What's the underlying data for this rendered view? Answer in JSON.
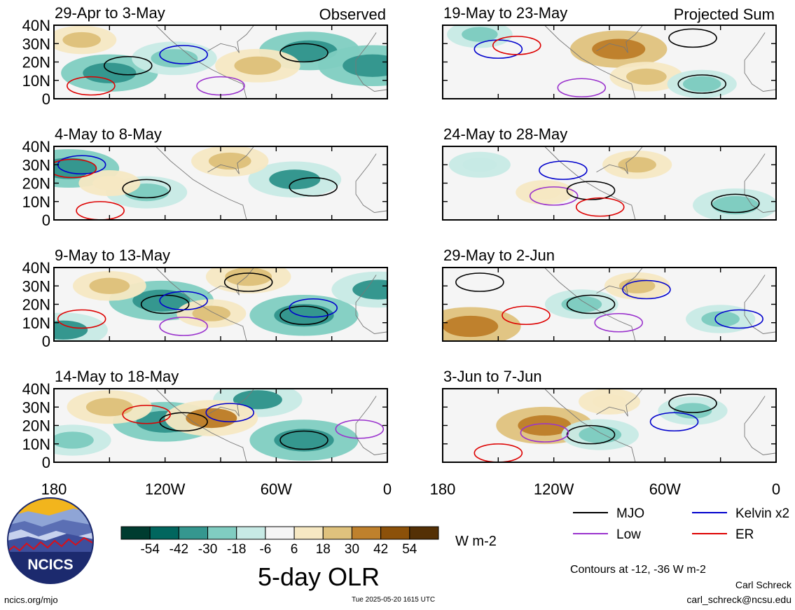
{
  "figure_title": "5-day OLR",
  "units": "W m-2",
  "contour_note": "Contours at -12, -36 W m-2",
  "colorbar_ticks": [
    "-54",
    "-42",
    "-30",
    "-18",
    "-6",
    "6",
    "18",
    "30",
    "42",
    "54"
  ],
  "colorbar_colors": [
    "#003c30",
    "#01665e",
    "#35978f",
    "#80cdc1",
    "#c7eae5",
    "#f5f5f5",
    "#f6e8c3",
    "#dfc27d",
    "#bf812d",
    "#8c510a",
    "#543005"
  ],
  "lon_ticks": [
    "180",
    "120W",
    "60W",
    "0"
  ],
  "lat_ticks": [
    "40N",
    "30N",
    "20N",
    "10N",
    "0"
  ],
  "column_labels": {
    "left": "Observed",
    "right": "Projected Sum"
  },
  "legend": [
    {
      "label": "MJO",
      "color": "#000000"
    },
    {
      "label": "Kelvin x2",
      "color": "#0000cc"
    },
    {
      "label": "Low",
      "color": "#9a32cd"
    },
    {
      "label": "ER",
      "color": "#dd0000"
    }
  ],
  "footer": {
    "site": "ncics.org/mjo",
    "timestamp": "Tue 2025-05-20 1615 UTC",
    "author": "Carl Schreck",
    "email": "carl_schreck@ncsu.edu"
  },
  "logo_text": "NCICS",
  "chart_data": [
    {
      "type": "heatmap",
      "title": "29-Apr to 3-May",
      "column": "Observed",
      "xlim": [
        "180",
        "0"
      ],
      "ylim": [
        0,
        40
      ],
      "features": [
        {
          "kind": "anomaly",
          "sign": "negative",
          "lon": -150,
          "lat": 14,
          "magnitude": 28
        },
        {
          "kind": "anomaly",
          "sign": "negative",
          "lon": -115,
          "lat": 22,
          "magnitude": 22
        },
        {
          "kind": "anomaly",
          "sign": "negative",
          "lon": -42,
          "lat": 26,
          "magnitude": 30
        },
        {
          "kind": "anomaly",
          "sign": "negative",
          "lon": -8,
          "lat": 18,
          "magnitude": 34
        },
        {
          "kind": "anomaly",
          "sign": "positive",
          "lon": -70,
          "lat": 18,
          "magnitude": 22
        },
        {
          "kind": "anomaly",
          "sign": "positive",
          "lon": -165,
          "lat": 32,
          "magnitude": 14
        },
        {
          "kind": "contour",
          "type": "MJO",
          "lon": -140,
          "lat": 18
        },
        {
          "kind": "contour",
          "type": "MJO",
          "lon": -45,
          "lat": 25
        },
        {
          "kind": "contour",
          "type": "Kelvin x2",
          "lon": -110,
          "lat": 24
        },
        {
          "kind": "contour",
          "type": "Low",
          "lon": -90,
          "lat": 7
        },
        {
          "kind": "contour",
          "type": "ER",
          "lon": -160,
          "lat": 7
        }
      ]
    },
    {
      "type": "heatmap",
      "title": "19-May to 23-May",
      "column": "Projected Sum",
      "xlim": [
        "180",
        "0"
      ],
      "ylim": [
        0,
        40
      ],
      "features": [
        {
          "kind": "anomaly",
          "sign": "positive",
          "lon": -85,
          "lat": 27,
          "magnitude": 28
        },
        {
          "kind": "anomaly",
          "sign": "positive",
          "lon": -70,
          "lat": 12,
          "magnitude": 16
        },
        {
          "kind": "anomaly",
          "sign": "negative",
          "lon": -160,
          "lat": 35,
          "magnitude": 12
        },
        {
          "kind": "anomaly",
          "sign": "negative",
          "lon": -40,
          "lat": 8,
          "magnitude": 14
        },
        {
          "kind": "contour",
          "type": "Kelvin x2",
          "lon": -150,
          "lat": 27
        },
        {
          "kind": "contour",
          "type": "ER",
          "lon": -140,
          "lat": 29
        },
        {
          "kind": "contour",
          "type": "MJO",
          "lon": -40,
          "lat": 8
        },
        {
          "kind": "contour",
          "type": "MJO",
          "lon": -45,
          "lat": 33
        },
        {
          "kind": "contour",
          "type": "Low",
          "lon": -105,
          "lat": 6
        }
      ]
    },
    {
      "type": "heatmap",
      "title": "4-May to 8-May",
      "column": "Observed",
      "xlim": [
        "180",
        "0"
      ],
      "ylim": [
        0,
        40
      ],
      "features": [
        {
          "kind": "anomaly",
          "sign": "negative",
          "lon": -172,
          "lat": 28,
          "magnitude": 30
        },
        {
          "kind": "anomaly",
          "sign": "negative",
          "lon": -130,
          "lat": 15,
          "magnitude": 20
        },
        {
          "kind": "anomaly",
          "sign": "negative",
          "lon": -50,
          "lat": 22,
          "magnitude": 26
        },
        {
          "kind": "anomaly",
          "sign": "positive",
          "lon": -85,
          "lat": 32,
          "magnitude": 18
        },
        {
          "kind": "anomaly",
          "sign": "positive",
          "lon": -150,
          "lat": 20,
          "magnitude": 10
        },
        {
          "kind": "contour",
          "type": "MJO",
          "lon": -130,
          "lat": 17
        },
        {
          "kind": "contour",
          "type": "MJO",
          "lon": -40,
          "lat": 18
        },
        {
          "kind": "contour",
          "type": "Kelvin x2",
          "lon": -165,
          "lat": 30
        },
        {
          "kind": "contour",
          "type": "ER",
          "lon": -170,
          "lat": 28
        },
        {
          "kind": "contour",
          "type": "ER",
          "lon": -155,
          "lat": 5
        }
      ]
    },
    {
      "type": "heatmap",
      "title": "24-May to 28-May",
      "column": "Projected Sum",
      "xlim": [
        "180",
        "0"
      ],
      "ylim": [
        0,
        40
      ],
      "features": [
        {
          "kind": "anomaly",
          "sign": "negative",
          "lon": -160,
          "lat": 30,
          "magnitude": 10
        },
        {
          "kind": "anomaly",
          "sign": "positive",
          "lon": -75,
          "lat": 30,
          "magnitude": 14
        },
        {
          "kind": "anomaly",
          "sign": "positive",
          "lon": -125,
          "lat": 15,
          "magnitude": 8
        },
        {
          "kind": "anomaly",
          "sign": "negative",
          "lon": -22,
          "lat": 8,
          "magnitude": 22
        },
        {
          "kind": "contour",
          "type": "Kelvin x2",
          "lon": -115,
          "lat": 27
        },
        {
          "kind": "contour",
          "type": "Low",
          "lon": -120,
          "lat": 13
        },
        {
          "kind": "contour",
          "type": "MJO",
          "lon": -100,
          "lat": 16
        },
        {
          "kind": "contour",
          "type": "MJO",
          "lon": -22,
          "lat": 9
        },
        {
          "kind": "contour",
          "type": "ER",
          "lon": -95,
          "lat": 7
        }
      ]
    },
    {
      "type": "heatmap",
      "title": "9-May to 13-May",
      "column": "Observed",
      "xlim": [
        "180",
        "0"
      ],
      "ylim": [
        0,
        40
      ],
      "features": [
        {
          "kind": "anomaly",
          "sign": "negative",
          "lon": -122,
          "lat": 22,
          "magnitude": 32
        },
        {
          "kind": "anomaly",
          "sign": "negative",
          "lon": -45,
          "lat": 14,
          "magnitude": 34
        },
        {
          "kind": "anomaly",
          "sign": "negative",
          "lon": -175,
          "lat": 6,
          "magnitude": 24
        },
        {
          "kind": "anomaly",
          "sign": "negative",
          "lon": -5,
          "lat": 28,
          "magnitude": 26
        },
        {
          "kind": "anomaly",
          "sign": "positive",
          "lon": -75,
          "lat": 35,
          "magnitude": 22
        },
        {
          "kind": "anomaly",
          "sign": "positive",
          "lon": -150,
          "lat": 30,
          "magnitude": 16
        },
        {
          "kind": "anomaly",
          "sign": "positive",
          "lon": -95,
          "lat": 15,
          "magnitude": 14
        },
        {
          "kind": "contour",
          "type": "MJO",
          "lon": -120,
          "lat": 20
        },
        {
          "kind": "contour",
          "type": "MJO",
          "lon": -75,
          "lat": 32
        },
        {
          "kind": "contour",
          "type": "MJO",
          "lon": -45,
          "lat": 14
        },
        {
          "kind": "contour",
          "type": "Kelvin x2",
          "lon": -110,
          "lat": 22
        },
        {
          "kind": "contour",
          "type": "Kelvin x2",
          "lon": -40,
          "lat": 18
        },
        {
          "kind": "contour",
          "type": "ER",
          "lon": -165,
          "lat": 12
        },
        {
          "kind": "contour",
          "type": "Low",
          "lon": -110,
          "lat": 8
        }
      ]
    },
    {
      "type": "heatmap",
      "title": "29-May to 2-Jun",
      "column": "Projected Sum",
      "xlim": [
        "180",
        "0"
      ],
      "ylim": [
        0,
        40
      ],
      "features": [
        {
          "kind": "anomaly",
          "sign": "positive",
          "lon": -165,
          "lat": 8,
          "magnitude": 30
        },
        {
          "kind": "anomaly",
          "sign": "negative",
          "lon": -105,
          "lat": 20,
          "magnitude": 16
        },
        {
          "kind": "anomaly",
          "sign": "negative",
          "lon": -30,
          "lat": 12,
          "magnitude": 14
        },
        {
          "kind": "anomaly",
          "sign": "positive",
          "lon": -75,
          "lat": 30,
          "magnitude": 12
        },
        {
          "kind": "contour",
          "type": "MJO",
          "lon": -160,
          "lat": 32
        },
        {
          "kind": "contour",
          "type": "MJO",
          "lon": -100,
          "lat": 20
        },
        {
          "kind": "contour",
          "type": "Kelvin x2",
          "lon": -70,
          "lat": 28
        },
        {
          "kind": "contour",
          "type": "Kelvin x2",
          "lon": -20,
          "lat": 12
        },
        {
          "kind": "contour",
          "type": "ER",
          "lon": -135,
          "lat": 14
        },
        {
          "kind": "contour",
          "type": "Low",
          "lon": -85,
          "lat": 10
        }
      ]
    },
    {
      "type": "heatmap",
      "title": "14-May to 18-May",
      "column": "Observed",
      "xlim": [
        "180",
        "0"
      ],
      "ylim": [
        0,
        40
      ],
      "features": [
        {
          "kind": "anomaly",
          "sign": "negative",
          "lon": -120,
          "lat": 22,
          "magnitude": 32
        },
        {
          "kind": "anomaly",
          "sign": "negative",
          "lon": -45,
          "lat": 12,
          "magnitude": 34
        },
        {
          "kind": "anomaly",
          "sign": "negative",
          "lon": -70,
          "lat": 34,
          "magnitude": 24
        },
        {
          "kind": "anomaly",
          "sign": "negative",
          "lon": -170,
          "lat": 12,
          "magnitude": 18
        },
        {
          "kind": "anomaly",
          "sign": "positive",
          "lon": -150,
          "lat": 30,
          "magnitude": 22
        },
        {
          "kind": "anomaly",
          "sign": "positive",
          "lon": -95,
          "lat": 24,
          "magnitude": 26
        },
        {
          "kind": "contour",
          "type": "MJO",
          "lon": -110,
          "lat": 22
        },
        {
          "kind": "contour",
          "type": "MJO",
          "lon": -45,
          "lat": 12
        },
        {
          "kind": "contour",
          "type": "ER",
          "lon": -130,
          "lat": 26
        },
        {
          "kind": "contour",
          "type": "Kelvin x2",
          "lon": -85,
          "lat": 27
        },
        {
          "kind": "contour",
          "type": "Low",
          "lon": -15,
          "lat": 18
        }
      ]
    },
    {
      "type": "heatmap",
      "title": "3-Jun to 7-Jun",
      "column": "Projected Sum",
      "xlim": [
        "180",
        "0"
      ],
      "ylim": [
        0,
        40
      ],
      "features": [
        {
          "kind": "anomaly",
          "sign": "positive",
          "lon": -125,
          "lat": 20,
          "magnitude": 28
        },
        {
          "kind": "anomaly",
          "sign": "negative",
          "lon": -95,
          "lat": 15,
          "magnitude": 18
        },
        {
          "kind": "anomaly",
          "sign": "negative",
          "lon": -45,
          "lat": 28,
          "magnitude": 14
        },
        {
          "kind": "anomaly",
          "sign": "positive",
          "lon": -90,
          "lat": 33,
          "magnitude": 10
        },
        {
          "kind": "contour",
          "type": "MJO",
          "lon": -100,
          "lat": 15
        },
        {
          "kind": "contour",
          "type": "MJO",
          "lon": -45,
          "lat": 32
        },
        {
          "kind": "contour",
          "type": "Low",
          "lon": -125,
          "lat": 16
        },
        {
          "kind": "contour",
          "type": "Kelvin x2",
          "lon": -55,
          "lat": 22
        },
        {
          "kind": "contour",
          "type": "ER",
          "lon": -150,
          "lat": 5
        }
      ]
    }
  ]
}
